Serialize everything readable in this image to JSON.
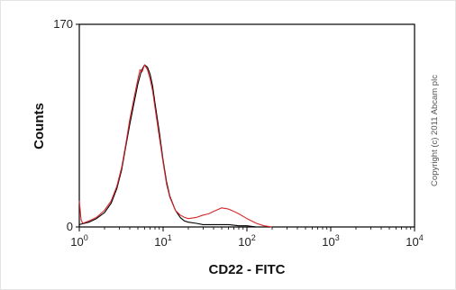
{
  "chart_data": {
    "type": "line",
    "title": "",
    "xlabel": "CD22 - FITC",
    "ylabel": "Counts",
    "x_scale": "log",
    "xlim": [
      1,
      10000
    ],
    "ylim": [
      0,
      170
    ],
    "x_ticks": [
      {
        "value": 1,
        "base": "10",
        "exp": "0"
      },
      {
        "value": 10,
        "base": "10",
        "exp": "1"
      },
      {
        "value": 100,
        "base": "10",
        "exp": "2"
      },
      {
        "value": 1000,
        "base": "10",
        "exp": "3"
      },
      {
        "value": 10000,
        "base": "10",
        "exp": "4"
      }
    ],
    "y_ticks": [
      {
        "value": 0,
        "label": "0"
      },
      {
        "value": 170,
        "label": "170"
      }
    ],
    "grid": false,
    "series": [
      {
        "color": "#000000",
        "x": [
          1.0,
          1.3,
          1.6,
          2.0,
          2.4,
          2.8,
          3.2,
          3.6,
          4.0,
          4.5,
          5.0,
          5.5,
          6.0,
          6.5,
          7.0,
          7.5,
          8.0,
          9.0,
          10,
          11,
          12,
          14,
          16,
          18,
          20,
          25,
          30,
          40,
          50,
          60,
          80,
          100,
          130,
          200
        ],
        "y": [
          2,
          4,
          7,
          12,
          20,
          32,
          48,
          68,
          86,
          104,
          120,
          131,
          136,
          134,
          128,
          118,
          104,
          80,
          56,
          38,
          26,
          14,
          8,
          5,
          4,
          3,
          2,
          2,
          2,
          2,
          1,
          1,
          0,
          0
        ]
      },
      {
        "color": "#d6262a",
        "x": [
          1.0,
          1.05,
          1.1,
          1.3,
          1.6,
          2.0,
          2.4,
          2.8,
          3.2,
          3.6,
          4.0,
          4.5,
          5.0,
          5.3,
          5.6,
          6.0,
          6.5,
          7.0,
          7.5,
          8.0,
          9.0,
          10,
          11,
          12,
          14,
          16,
          18,
          20,
          25,
          30,
          35,
          40,
          50,
          60,
          70,
          80,
          100,
          130,
          160,
          200
        ],
        "y": [
          22,
          6,
          3,
          5,
          8,
          14,
          22,
          34,
          50,
          70,
          90,
          108,
          124,
          132,
          130,
          136,
          132,
          124,
          114,
          100,
          76,
          54,
          36,
          25,
          14,
          10,
          8,
          7,
          8,
          10,
          11,
          13,
          16,
          15,
          13,
          11,
          7,
          3,
          1,
          0
        ]
      }
    ]
  },
  "watermark": "Copyright (c) 2011 Abcam plc"
}
